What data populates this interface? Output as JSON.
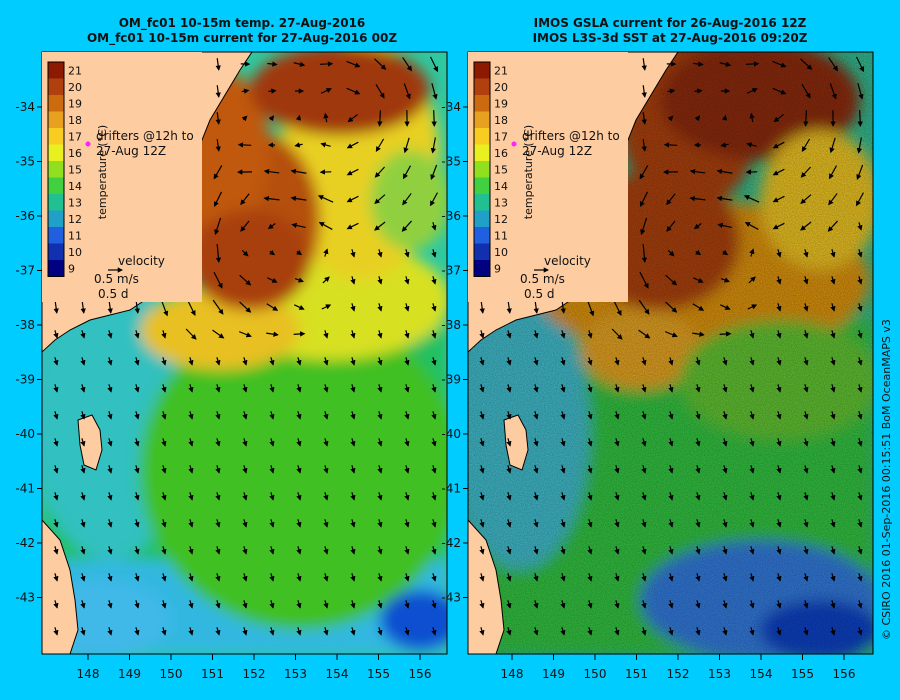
{
  "panels": [
    {
      "id": "left",
      "title_line1": "OM_fc01 10-15m temp. 27-Aug-2016",
      "title_line2": "OM_fc01 10-15m current for 27-Aug-2016 00Z",
      "noise": false
    },
    {
      "id": "right",
      "title_line1": "IMOS GSLA current for 26-Aug-2016 12Z",
      "title_line2": "IMOS L3S-3d SST at 27-Aug-2016 09:20Z",
      "noise": true
    }
  ],
  "latitude_ticks": [
    "-34",
    "-35",
    "-36",
    "-37",
    "-38",
    "-39",
    "-40",
    "-41",
    "-42",
    "-43"
  ],
  "longitude_ticks": [
    "148",
    "149",
    "150",
    "151",
    "152",
    "153",
    "154",
    "155",
    "156"
  ],
  "colorbar": {
    "labels": [
      "21",
      "20",
      "19",
      "18",
      "17",
      "16",
      "15",
      "14",
      "13",
      "12",
      "11",
      "10",
      "9"
    ],
    "title": "temperature (°C)",
    "colors": [
      "#8b1a00",
      "#b0400e",
      "#cc6a10",
      "#e8a020",
      "#f8cc20",
      "#e8f020",
      "#90e020",
      "#40d040",
      "#20c090",
      "#20a0c8",
      "#2060e0",
      "#1030b0",
      "#000080"
    ]
  },
  "drifters": {
    "text_line1": "drifters @12h to",
    "text_line2": "27-Aug 12Z",
    "marker_color": "#ff22ff"
  },
  "velocity_legend": {
    "title": "velocity",
    "speed": "0.5 m/s",
    "duration": "0.5 d"
  },
  "credit": "© CSIRO 2016  01-Sep-2016 00:15:51 BoM OceanMAPS v3",
  "colors": {
    "land": "#fdcca0",
    "background": "#00ccff"
  }
}
